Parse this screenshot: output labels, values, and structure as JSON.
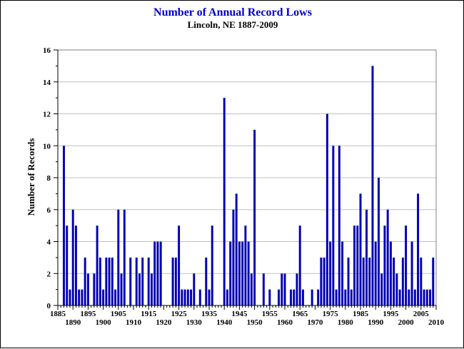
{
  "chart_data": {
    "type": "bar",
    "title": "Number of Annual Record Lows",
    "subtitle": "Lincoln, NE 1887-2009",
    "xlabel": "",
    "ylabel": "Number of Records",
    "xlim": [
      1885,
      2010
    ],
    "ylim": [
      0,
      16
    ],
    "y_ticks": [
      0,
      2,
      4,
      6,
      8,
      10,
      12,
      14,
      16
    ],
    "x_ticks_lower": [
      1885,
      1895,
      1905,
      1915,
      1925,
      1935,
      1945,
      1955,
      1965,
      1975,
      1985,
      1995,
      2005
    ],
    "x_ticks_upper": [
      1890,
      1900,
      1910,
      1920,
      1930,
      1940,
      1950,
      1960,
      1970,
      1980,
      1990,
      2000,
      2010
    ],
    "grid": "horizontal",
    "colors": {
      "bar": "#0000b4",
      "title": "#0000cc",
      "grid": "#c0c0c0"
    },
    "x": [
      1887,
      1888,
      1889,
      1890,
      1891,
      1892,
      1893,
      1894,
      1895,
      1896,
      1897,
      1898,
      1899,
      1900,
      1901,
      1902,
      1903,
      1904,
      1905,
      1906,
      1907,
      1908,
      1909,
      1910,
      1911,
      1912,
      1913,
      1914,
      1915,
      1916,
      1917,
      1918,
      1919,
      1920,
      1921,
      1922,
      1923,
      1924,
      1925,
      1926,
      1927,
      1928,
      1929,
      1930,
      1931,
      1932,
      1933,
      1934,
      1935,
      1936,
      1937,
      1938,
      1939,
      1940,
      1941,
      1942,
      1943,
      1944,
      1945,
      1946,
      1947,
      1948,
      1949,
      1950,
      1951,
      1952,
      1953,
      1954,
      1955,
      1956,
      1957,
      1958,
      1959,
      1960,
      1961,
      1962,
      1963,
      1964,
      1965,
      1966,
      1967,
      1968,
      1969,
      1970,
      1971,
      1972,
      1973,
      1974,
      1975,
      1976,
      1977,
      1978,
      1979,
      1980,
      1981,
      1982,
      1983,
      1984,
      1985,
      1986,
      1987,
      1988,
      1989,
      1990,
      1991,
      1992,
      1993,
      1994,
      1995,
      1996,
      1997,
      1998,
      1999,
      2000,
      2001,
      2002,
      2003,
      2004,
      2005,
      2006,
      2007,
      2008,
      2009
    ],
    "values": [
      10,
      5,
      1,
      6,
      5,
      1,
      1,
      3,
      2,
      0,
      2,
      5,
      3,
      1,
      3,
      3,
      3,
      1,
      6,
      2,
      6,
      0,
      3,
      0,
      3,
      2,
      3,
      0,
      3,
      2,
      4,
      4,
      4,
      0,
      0,
      0,
      3,
      3,
      5,
      1,
      1,
      1,
      1,
      2,
      0,
      1,
      0,
      3,
      1,
      5,
      0,
      0,
      0,
      13,
      1,
      4,
      6,
      7,
      4,
      4,
      5,
      4,
      2,
      11,
      0,
      0,
      2,
      0,
      1,
      0,
      0,
      1,
      2,
      2,
      0,
      1,
      1,
      2,
      5,
      1,
      0,
      0,
      1,
      0,
      1,
      3,
      3,
      12,
      4,
      10,
      1,
      10,
      4,
      1,
      3,
      1,
      5,
      5,
      7,
      3,
      6,
      3,
      15,
      4,
      8,
      2,
      5,
      6,
      4,
      3,
      2,
      1,
      3,
      5,
      1,
      4,
      1,
      7,
      3,
      1,
      1,
      1,
      3
    ]
  }
}
